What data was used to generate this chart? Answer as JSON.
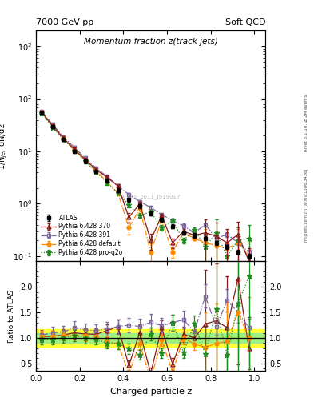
{
  "title": "Momentum fraction z(track jets)",
  "header_left": "7000 GeV pp",
  "header_right": "Soft QCD",
  "xlabel": "Charged particle z",
  "ylabel_main": "1/N$_{jet}$ dN/dz",
  "ylabel_ratio": "Ratio to ATLAS",
  "right_label_top": "Rivet 3.1.10, ≥ 2M events",
  "right_label_bot": "mcplots.cern.ch [arXiv:1306.3436]",
  "watermark": "ATLAS_2011_I919017",
  "atlas_label": "ATLAS",
  "z": [
    0.025,
    0.075,
    0.125,
    0.175,
    0.225,
    0.275,
    0.325,
    0.375,
    0.425,
    0.475,
    0.525,
    0.575,
    0.625,
    0.675,
    0.725,
    0.775,
    0.825,
    0.875,
    0.925,
    0.975
  ],
  "atlas_y": [
    55,
    30,
    17,
    10,
    6.5,
    4.2,
    2.8,
    1.8,
    1.2,
    0.9,
    0.65,
    0.5,
    0.37,
    0.28,
    0.25,
    0.22,
    0.18,
    0.15,
    0.12,
    0.1
  ],
  "atlas_yerr": [
    4,
    2.2,
    1.2,
    0.75,
    0.5,
    0.32,
    0.22,
    0.15,
    0.1,
    0.08,
    0.06,
    0.045,
    0.032,
    0.025,
    0.022,
    0.02,
    0.016,
    0.013,
    0.011,
    0.01
  ],
  "py370_y": [
    56,
    31,
    18,
    11,
    7.0,
    4.5,
    3.2,
    2.2,
    0.55,
    1.0,
    0.2,
    0.6,
    0.18,
    0.3,
    0.25,
    0.28,
    0.24,
    0.18,
    0.26,
    0.08
  ],
  "py370_yerr": [
    4,
    2.2,
    1.3,
    0.8,
    0.52,
    0.35,
    0.24,
    0.16,
    0.12,
    0.1,
    0.07,
    0.05,
    0.04,
    0.03,
    0.025,
    0.23,
    0.2,
    0.15,
    0.2,
    0.06
  ],
  "py391_y": [
    58,
    33,
    19,
    12,
    7.5,
    4.8,
    3.3,
    2.2,
    1.5,
    1.1,
    0.85,
    0.62,
    0.48,
    0.38,
    0.28,
    0.4,
    0.22,
    0.26,
    0.18,
    0.12
  ],
  "py391_yerr": [
    4,
    2.3,
    1.3,
    0.8,
    0.55,
    0.35,
    0.25,
    0.17,
    0.12,
    0.09,
    0.07,
    0.055,
    0.042,
    0.035,
    0.028,
    0.035,
    0.022,
    0.025,
    0.018,
    0.012
  ],
  "pydef_y": [
    57,
    31,
    18,
    10.5,
    6.8,
    4.3,
    2.6,
    1.6,
    0.35,
    0.8,
    0.12,
    0.48,
    0.12,
    0.28,
    0.22,
    0.18,
    0.16,
    0.14,
    0.18,
    0.1
  ],
  "pydef_yerr": [
    4,
    2.2,
    1.2,
    0.75,
    0.5,
    0.32,
    0.21,
    0.14,
    0.09,
    0.07,
    0.055,
    0.042,
    0.028,
    0.025,
    0.02,
    0.15,
    0.14,
    0.12,
    0.15,
    0.08
  ],
  "pyq2o_y": [
    54,
    29,
    17,
    10.5,
    6.5,
    4.1,
    2.5,
    1.6,
    0.95,
    0.6,
    0.7,
    0.35,
    0.48,
    0.2,
    0.32,
    0.15,
    0.28,
    0.1,
    0.2,
    0.22
  ],
  "pyq2o_yerr": [
    4,
    2.1,
    1.2,
    0.75,
    0.48,
    0.3,
    0.19,
    0.13,
    0.09,
    0.065,
    0.055,
    0.038,
    0.04,
    0.022,
    0.028,
    0.12,
    0.22,
    0.08,
    0.16,
    0.18
  ],
  "color_atlas": "#000000",
  "color_370": "#8B1A1A",
  "color_391": "#7B68A0",
  "color_def": "#FF8C00",
  "color_q2o": "#228B22",
  "ylim_main": [
    0.08,
    2000
  ],
  "ylim_ratio": [
    0.35,
    2.5
  ],
  "xlim": [
    0.0,
    1.05
  ],
  "yticks_ratio": [
    0.5,
    1.0,
    1.5,
    2.0
  ],
  "yellow_band_half": 0.17,
  "green_band_half": 0.09
}
